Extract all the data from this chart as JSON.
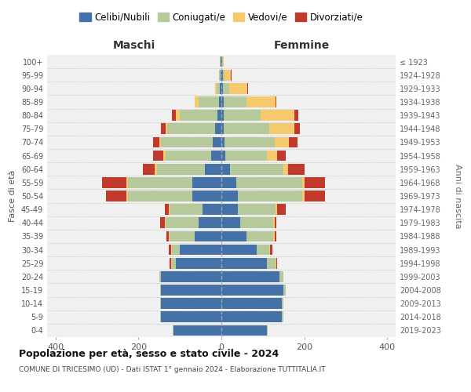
{
  "age_groups": [
    "0-4",
    "5-9",
    "10-14",
    "15-19",
    "20-24",
    "25-29",
    "30-34",
    "35-39",
    "40-44",
    "45-49",
    "50-54",
    "55-59",
    "60-64",
    "65-69",
    "70-74",
    "75-79",
    "80-84",
    "85-89",
    "90-94",
    "95-99",
    "100+"
  ],
  "birth_years": [
    "2019-2023",
    "2014-2018",
    "2009-2013",
    "2004-2008",
    "1999-2003",
    "1994-1998",
    "1989-1993",
    "1984-1988",
    "1979-1983",
    "1974-1978",
    "1969-1973",
    "1964-1968",
    "1959-1963",
    "1954-1958",
    "1949-1953",
    "1944-1948",
    "1939-1943",
    "1934-1938",
    "1929-1933",
    "1924-1928",
    "≤ 1923"
  ],
  "male": {
    "celibi": [
      115,
      145,
      145,
      145,
      145,
      110,
      100,
      65,
      55,
      45,
      70,
      70,
      40,
      25,
      20,
      15,
      10,
      5,
      3,
      2,
      2
    ],
    "coniugati": [
      2,
      2,
      2,
      2,
      5,
      10,
      20,
      60,
      80,
      80,
      155,
      155,
      115,
      110,
      125,
      115,
      90,
      50,
      8,
      3,
      1
    ],
    "vedovi": [
      0,
      0,
      0,
      0,
      0,
      2,
      2,
      2,
      2,
      2,
      3,
      3,
      5,
      5,
      5,
      5,
      10,
      10,
      5,
      0,
      0
    ],
    "divorziati": [
      0,
      0,
      0,
      0,
      0,
      3,
      5,
      5,
      10,
      10,
      50,
      60,
      30,
      25,
      15,
      10,
      10,
      0,
      0,
      0,
      0
    ]
  },
  "female": {
    "nubili": [
      110,
      145,
      145,
      150,
      140,
      110,
      85,
      60,
      45,
      40,
      40,
      35,
      20,
      10,
      8,
      5,
      5,
      5,
      3,
      3,
      2
    ],
    "coniugate": [
      2,
      5,
      5,
      5,
      10,
      20,
      30,
      65,
      80,
      90,
      155,
      160,
      130,
      100,
      120,
      110,
      90,
      55,
      15,
      5,
      1
    ],
    "vedove": [
      0,
      0,
      0,
      0,
      0,
      2,
      3,
      3,
      3,
      5,
      5,
      5,
      10,
      25,
      35,
      60,
      80,
      70,
      45,
      15,
      2
    ],
    "divorziate": [
      0,
      0,
      0,
      0,
      0,
      2,
      5,
      5,
      5,
      20,
      50,
      50,
      40,
      20,
      20,
      15,
      10,
      3,
      2,
      2,
      0
    ]
  },
  "colors": {
    "celibi": "#4472a8",
    "coniugati": "#b5c99a",
    "vedovi": "#f7c96e",
    "divorziati": "#c0392b"
  },
  "legend_labels": [
    "Celibi/Nubili",
    "Coniugati/e",
    "Vedovi/e",
    "Divorziati/e"
  ],
  "title": "Popolazione per età, sesso e stato civile - 2024",
  "subtitle": "COMUNE DI TRICESIMO (UD) - Dati ISTAT 1° gennaio 2024 - Elaborazione TUTTITALIA.IT",
  "xlabel_left": "Maschi",
  "xlabel_right": "Femmine",
  "ylabel": "Fasce di età",
  "ylabel_right": "Anni di nascita",
  "xlim": 420,
  "background_color": "#ffffff"
}
